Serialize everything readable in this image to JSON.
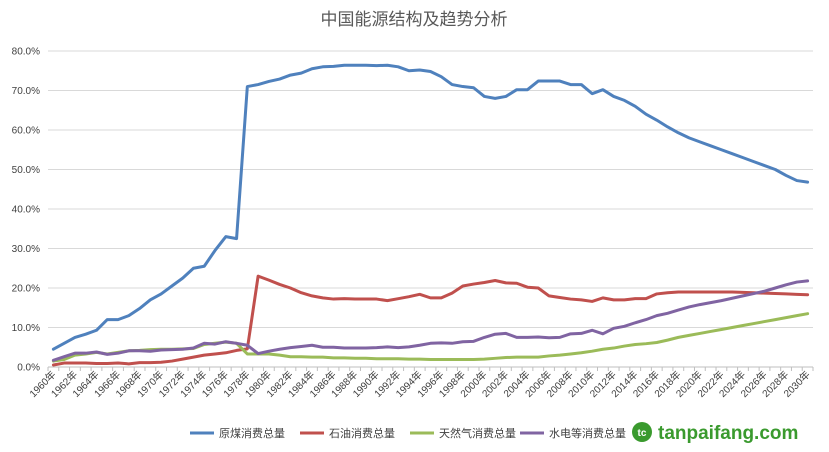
{
  "chart_data": {
    "type": "line",
    "title": "中国能源结构及趋势分析",
    "xlabel": "",
    "ylabel": "",
    "ylim": [
      0,
      80
    ],
    "y_ticks": [
      "0.0%",
      "10.0%",
      "20.0%",
      "30.0%",
      "40.0%",
      "50.0%",
      "60.0%",
      "70.0%",
      "80.0%"
    ],
    "y_tick_values": [
      0,
      10,
      20,
      30,
      40,
      50,
      60,
      70,
      80
    ],
    "grid": true,
    "legend_position": "bottom",
    "x_tick_labels": [
      "1960年",
      "1962年",
      "1964年",
      "1966年",
      "1968年",
      "1970年",
      "1972年",
      "1974年",
      "1976年",
      "1978年",
      "1980年",
      "1982年",
      "1984年",
      "1986年",
      "1988年",
      "1990年",
      "1992年",
      "1994年",
      "1996年",
      "1998年",
      "2000年",
      "2002年",
      "2004年",
      "2006年",
      "2008年",
      "2010年",
      "2012年",
      "2014年",
      "2016年",
      "2018年",
      "2020年",
      "2022年",
      "2024年",
      "2026年",
      "2028年",
      "2030年"
    ],
    "x": [
      1960,
      1961,
      1962,
      1963,
      1964,
      1965,
      1966,
      1967,
      1968,
      1969,
      1970,
      1971,
      1972,
      1973,
      1974,
      1975,
      1976,
      1977,
      1978,
      1979,
      1980,
      1981,
      1982,
      1983,
      1984,
      1985,
      1986,
      1987,
      1988,
      1989,
      1990,
      1991,
      1992,
      1993,
      1994,
      1995,
      1996,
      1997,
      1998,
      1999,
      2000,
      2001,
      2002,
      2003,
      2004,
      2005,
      2006,
      2007,
      2008,
      2009,
      2010,
      2011,
      2012,
      2013,
      2014,
      2015,
      2016,
      2017,
      2018,
      2019,
      2020,
      2021,
      2022,
      2023,
      2024,
      2025,
      2026,
      2027,
      2028,
      2029,
      2030
    ],
    "series": [
      {
        "name": "原煤消费总量",
        "color": "#4f81bd",
        "values": [
          4.5,
          6.0,
          7.5,
          8.3,
          9.3,
          12.0,
          12.0,
          13.0,
          14.8,
          17.0,
          18.5,
          20.5,
          22.5,
          25.0,
          25.5,
          29.5,
          33.0,
          32.5,
          71.0,
          71.5,
          72.3,
          72.9,
          73.9,
          74.4,
          75.5,
          76.0,
          76.1,
          76.4,
          76.4,
          76.4,
          76.3,
          76.4,
          76.0,
          75.0,
          75.2,
          74.8,
          73.5,
          71.5,
          71.0,
          70.7,
          68.5,
          68.0,
          68.5,
          70.2,
          70.2,
          72.4,
          72.4,
          72.4,
          71.5,
          71.5,
          69.2,
          70.2,
          68.5,
          67.5,
          66.0,
          64.0,
          62.5,
          60.8,
          59.3,
          58.0,
          57.0,
          56.0,
          55.0,
          54.0,
          53.0,
          52.0,
          51.0,
          50.0,
          48.5,
          47.2,
          46.8
        ]
      },
      {
        "name": "石油消费总量",
        "color": "#c0504d",
        "values": [
          0.5,
          1.0,
          1.0,
          1.0,
          0.9,
          0.9,
          1.0,
          0.8,
          1.1,
          1.1,
          1.2,
          1.5,
          2.0,
          2.5,
          3.0,
          3.3,
          3.6,
          4.2,
          4.6,
          23.0,
          22.0,
          20.9,
          20.0,
          18.8,
          18.0,
          17.5,
          17.2,
          17.3,
          17.2,
          17.2,
          17.2,
          16.8,
          17.3,
          17.8,
          18.4,
          17.5,
          17.5,
          18.7,
          20.5,
          21.0,
          21.4,
          21.9,
          21.3,
          21.2,
          20.2,
          20.0,
          18.0,
          17.6,
          17.2,
          17.0,
          16.6,
          17.5,
          17.0,
          17.0,
          17.3,
          17.3,
          18.5,
          18.8,
          19.0,
          19.0,
          19.0,
          19.0,
          19.0,
          19.0,
          18.9,
          18.8,
          18.7,
          18.6,
          18.5,
          18.4,
          18.3
        ]
      },
      {
        "name": "天然气消费总量",
        "color": "#9bbb59",
        "values": [
          1.5,
          1.9,
          3.0,
          3.3,
          3.7,
          3.3,
          3.7,
          4.1,
          4.2,
          4.4,
          4.5,
          4.5,
          4.6,
          4.7,
          5.7,
          6.0,
          6.3,
          6.0,
          3.3,
          3.3,
          3.3,
          3.0,
          2.6,
          2.6,
          2.5,
          2.5,
          2.3,
          2.3,
          2.2,
          2.2,
          2.1,
          2.1,
          2.1,
          2.0,
          2.0,
          1.9,
          1.9,
          1.9,
          1.9,
          1.9,
          2.0,
          2.2,
          2.4,
          2.5,
          2.5,
          2.5,
          2.8,
          3.0,
          3.3,
          3.6,
          4.0,
          4.5,
          4.8,
          5.3,
          5.7,
          5.9,
          6.2,
          6.8,
          7.5,
          8.0,
          8.5,
          9.0,
          9.5,
          10.0,
          10.5,
          11.0,
          11.5,
          12.0,
          12.5,
          13.0,
          13.5
        ]
      },
      {
        "name": "水电等消费总量",
        "color": "#8064a2",
        "values": [
          1.7,
          2.6,
          3.5,
          3.5,
          3.8,
          3.2,
          3.5,
          4.1,
          4.1,
          4.0,
          4.3,
          4.4,
          4.5,
          4.8,
          6.0,
          5.8,
          6.4,
          6.0,
          5.5,
          3.4,
          4.0,
          4.5,
          4.9,
          5.2,
          5.5,
          5.0,
          5.0,
          4.8,
          4.8,
          4.8,
          4.9,
          5.1,
          4.9,
          5.1,
          5.5,
          6.0,
          6.1,
          6.0,
          6.4,
          6.5,
          7.5,
          8.3,
          8.5,
          7.5,
          7.5,
          7.6,
          7.4,
          7.5,
          8.4,
          8.5,
          9.3,
          8.4,
          9.8,
          10.3,
          11.2,
          12.0,
          13.0,
          13.6,
          14.4,
          15.2,
          15.8,
          16.3,
          16.8,
          17.4,
          18.0,
          18.6,
          19.2,
          20.0,
          20.8,
          21.5,
          21.8
        ]
      }
    ]
  },
  "watermark": {
    "text": "tanpaifang.com",
    "logo_letter": "tc",
    "color": "#3a9a2e"
  }
}
